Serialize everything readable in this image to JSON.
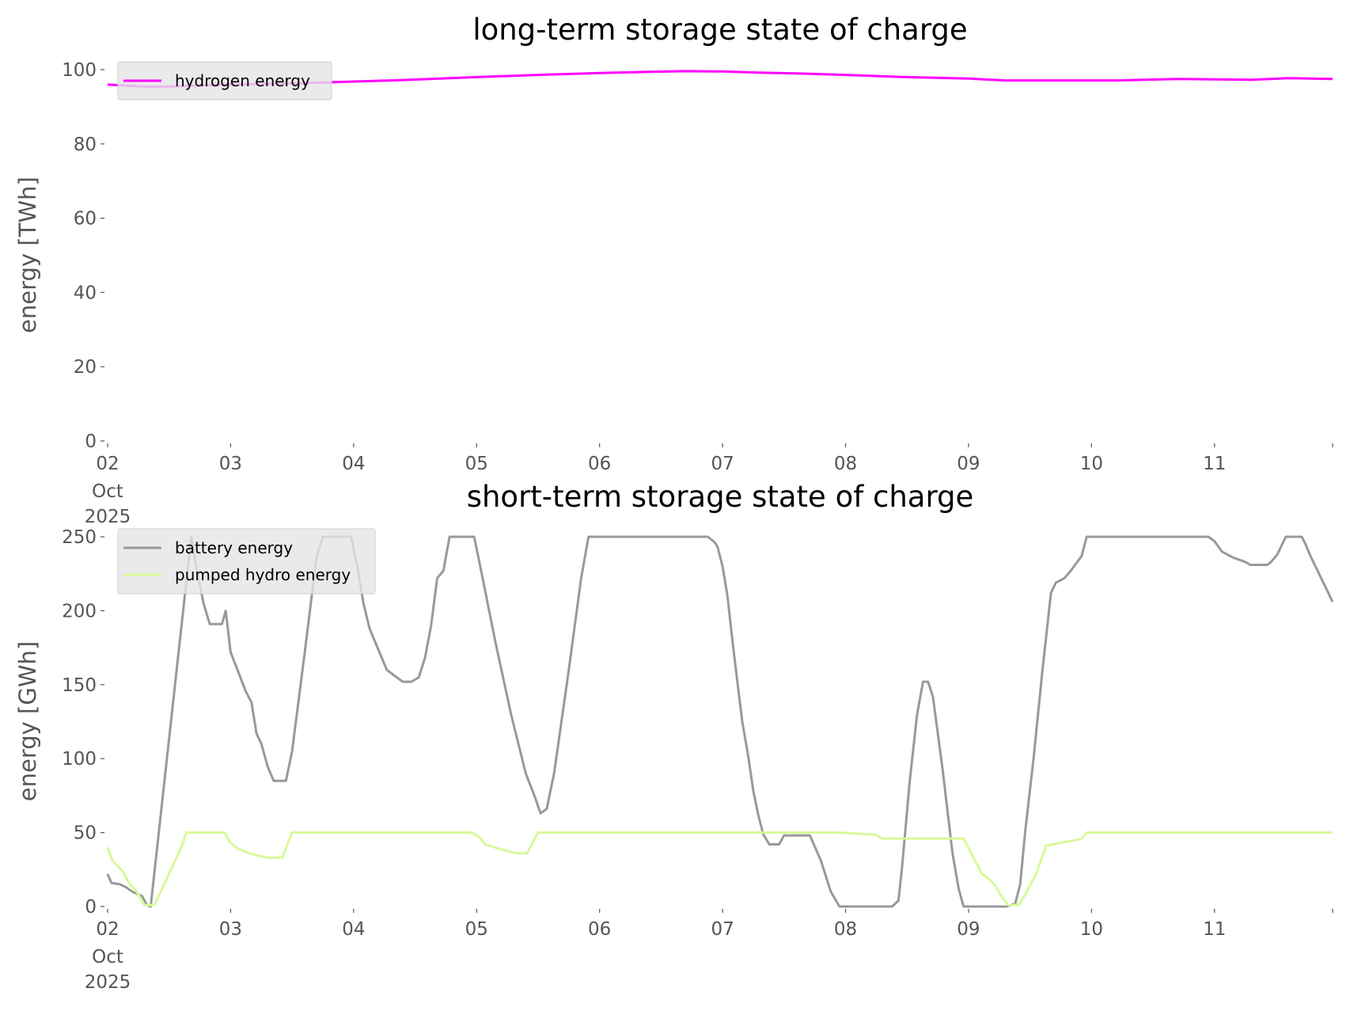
{
  "chart_data": [
    {
      "type": "line",
      "title": "long-term storage state of charge",
      "xlabel": "",
      "ylabel": "energy [TWh]",
      "ylim": [
        0,
        100
      ],
      "xlim_days": [
        0,
        9.96
      ],
      "x_unit": "days since 2025-10-02 00:00",
      "yticks": [
        "0",
        "20",
        "40",
        "60",
        "80",
        "100"
      ],
      "ytick_values": [
        0,
        20,
        40,
        60,
        80,
        100
      ],
      "xticks": [
        "02",
        "03",
        "04",
        "05",
        "06",
        "07",
        "08",
        "09",
        "10",
        "11"
      ],
      "xtick_first_sub": [
        "Oct",
        "2025"
      ],
      "grid": false,
      "legend": "top-left",
      "series": [
        {
          "name": "hydrogen energy",
          "color": "#ff00ff",
          "x": [
            0,
            0.15,
            0.35,
            0.55,
            0.8,
            1.0,
            1.5,
            2.0,
            2.4,
            3.0,
            3.5,
            4.0,
            4.4,
            4.7,
            5.0,
            5.3,
            5.6,
            6.0,
            6.5,
            7.0,
            7.3,
            7.7,
            8.2,
            8.7,
            9.0,
            9.3,
            9.6,
            9.96
          ],
          "y": [
            96.0,
            95.7,
            95.4,
            95.5,
            95.8,
            96.0,
            96.3,
            96.8,
            97.2,
            98.0,
            98.6,
            99.1,
            99.4,
            99.6,
            99.5,
            99.2,
            99.0,
            98.6,
            98.0,
            97.6,
            97.1,
            97.1,
            97.1,
            97.5,
            97.4,
            97.3,
            97.7,
            97.5
          ]
        }
      ]
    },
    {
      "type": "line",
      "title": "short-term storage state of charge",
      "xlabel": "",
      "ylabel": "energy [GWh]",
      "ylim": [
        0,
        250
      ],
      "xlim_days": [
        0,
        9.96
      ],
      "x_unit": "days since 2025-10-02 00:00",
      "yticks": [
        "0",
        "50",
        "100",
        "150",
        "200",
        "250"
      ],
      "ytick_values": [
        0,
        50,
        100,
        150,
        200,
        250
      ],
      "xticks": [
        "02",
        "03",
        "04",
        "05",
        "06",
        "07",
        "08",
        "09",
        "10",
        "11"
      ],
      "xtick_first_sub": [
        "Oct",
        "2025"
      ],
      "grid": false,
      "legend": "top-left",
      "series": [
        {
          "name": "battery energy",
          "color": "#999999",
          "x": [
            0,
            0.03,
            0.1,
            0.15,
            0.2,
            0.28,
            0.32,
            0.35,
            0.68,
            0.72,
            0.78,
            0.83,
            0.93,
            0.96,
            1.0,
            1.07,
            1.12,
            1.17,
            1.21,
            1.25,
            1.3,
            1.35,
            1.45,
            1.5,
            1.6,
            1.7,
            1.75,
            1.98,
            2.03,
            2.08,
            2.13,
            2.2,
            2.27,
            2.35,
            2.4,
            2.47,
            2.53,
            2.58,
            2.63,
            2.68,
            2.73,
            2.78,
            2.98,
            3.03,
            3.15,
            3.28,
            3.4,
            3.47,
            3.52,
            3.57,
            3.63,
            3.75,
            3.85,
            3.91,
            4.88,
            4.94,
            4.96,
            5.0,
            5.04,
            5.08,
            5.12,
            5.16,
            5.21,
            5.25,
            5.29,
            5.33,
            5.38,
            5.46,
            5.5,
            5.71,
            5.8,
            5.88,
            5.95,
            6.38,
            6.43,
            6.46,
            6.52,
            6.58,
            6.63,
            6.67,
            6.71,
            6.79,
            6.87,
            6.92,
            6.96,
            7.31,
            7.38,
            7.42,
            7.46,
            7.53,
            7.6,
            7.67,
            7.71,
            7.78,
            7.83,
            7.92,
            7.96,
            8.95,
            9.0,
            9.06,
            9.15,
            9.25,
            9.29,
            9.43,
            9.46,
            9.51,
            9.58,
            9.71,
            9.74,
            9.78,
            9.85,
            9.96
          ],
          "y": [
            22,
            16,
            15,
            13,
            10,
            7,
            1,
            0,
            250,
            230,
            205,
            191,
            191,
            200,
            172,
            157,
            146,
            138,
            117,
            110,
            95,
            85,
            85,
            105,
            170,
            237,
            250,
            250,
            230,
            205,
            188,
            174,
            160,
            155,
            152,
            152,
            155,
            168,
            190,
            222,
            227,
            250,
            250,
            230,
            180,
            130,
            90,
            75,
            63,
            66,
            90,
            160,
            222,
            250,
            250,
            246,
            243,
            230,
            210,
            180,
            152,
            125,
            101,
            78,
            62,
            49,
            42,
            42,
            48,
            48,
            31,
            10,
            0,
            0,
            4,
            27,
            83,
            129,
            152,
            152,
            142,
            92,
            36,
            12,
            0,
            0,
            2,
            15,
            50,
            101,
            159,
            212,
            219,
            222,
            227,
            237,
            250,
            250,
            247,
            240,
            236,
            233,
            231,
            231,
            233,
            238,
            250,
            250,
            245,
            237,
            225,
            206
          ]
        },
        {
          "name": "pumped hydro energy",
          "color": "#d8f99b",
          "x": [
            0,
            0.04,
            0.12,
            0.18,
            0.23,
            0.3,
            0.38,
            0.6,
            0.64,
            0.95,
            1.0,
            1.06,
            1.15,
            1.3,
            1.42,
            1.5,
            2.96,
            3.02,
            3.07,
            3.18,
            3.33,
            3.41,
            3.46,
            3.5,
            5.95,
            6.24,
            6.3,
            6.96,
            7.04,
            7.11,
            7.16,
            7.21,
            7.26,
            7.32,
            7.41,
            7.46,
            7.55,
            7.63,
            7.74,
            7.88,
            7.92,
            7.96,
            9.96
          ],
          "y": [
            40,
            31,
            24,
            15,
            11,
            1,
            1,
            40,
            50,
            50,
            43,
            39,
            36,
            33,
            33,
            50,
            50,
            47,
            42,
            39,
            36,
            36,
            44,
            50,
            50,
            48.5,
            46,
            46,
            33,
            22,
            19,
            15,
            8,
            1,
            1,
            8,
            22,
            41,
            43,
            45,
            46,
            50,
            50
          ]
        }
      ]
    }
  ]
}
